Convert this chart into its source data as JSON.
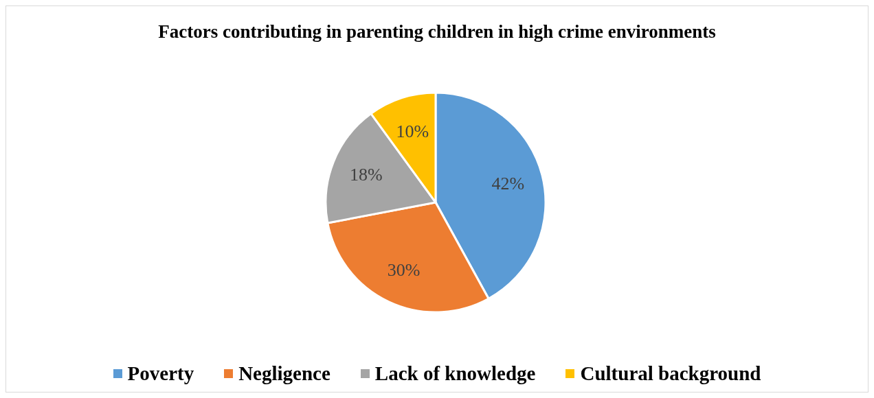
{
  "chart_data": {
    "type": "pie",
    "title": "Factors contributing in parenting children in high crime environments",
    "categories": [
      "Poverty",
      "Negligence",
      "Lack of knowledge",
      "Cultural background"
    ],
    "values": [
      42,
      30,
      18,
      10
    ],
    "value_labels": [
      "42%",
      "30%",
      "18%",
      "10%"
    ],
    "colors": [
      "#5b9bd5",
      "#ed7d31",
      "#a5a5a5",
      "#ffc000"
    ],
    "legend": "bottom"
  }
}
